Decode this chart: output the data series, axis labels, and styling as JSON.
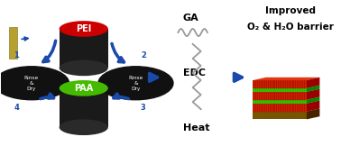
{
  "bg_color": "white",
  "substrate_color": "#b8a030",
  "substrate_edge": "#7a6a10",
  "PEI_top_color": "#cc0000",
  "PAA_top_color": "#44bb00",
  "cylinder_body_color": "#1a1a1a",
  "cylinder_body_light": "#333333",
  "rinse_circle_color": "#111111",
  "arrow_color": "#1a4aaa",
  "PEI_label": "PEI",
  "PAA_label": "PAA",
  "rinse_text": "Rinse\n&\nDry",
  "GA_label": "GA",
  "EDC_label": "EDC",
  "Heat_label": "Heat",
  "mol_color": "#999999",
  "title1": "Improved",
  "title2": "O₂ & H₂O barrier",
  "title_fontsize": 7.5,
  "red_layer": "#cc2200",
  "green_layer": "#33bb00",
  "base_color": "#7a5500",
  "base_top_color": "#9a7010",
  "step1": "1",
  "step2": "2",
  "step3": "3",
  "step4": "4"
}
